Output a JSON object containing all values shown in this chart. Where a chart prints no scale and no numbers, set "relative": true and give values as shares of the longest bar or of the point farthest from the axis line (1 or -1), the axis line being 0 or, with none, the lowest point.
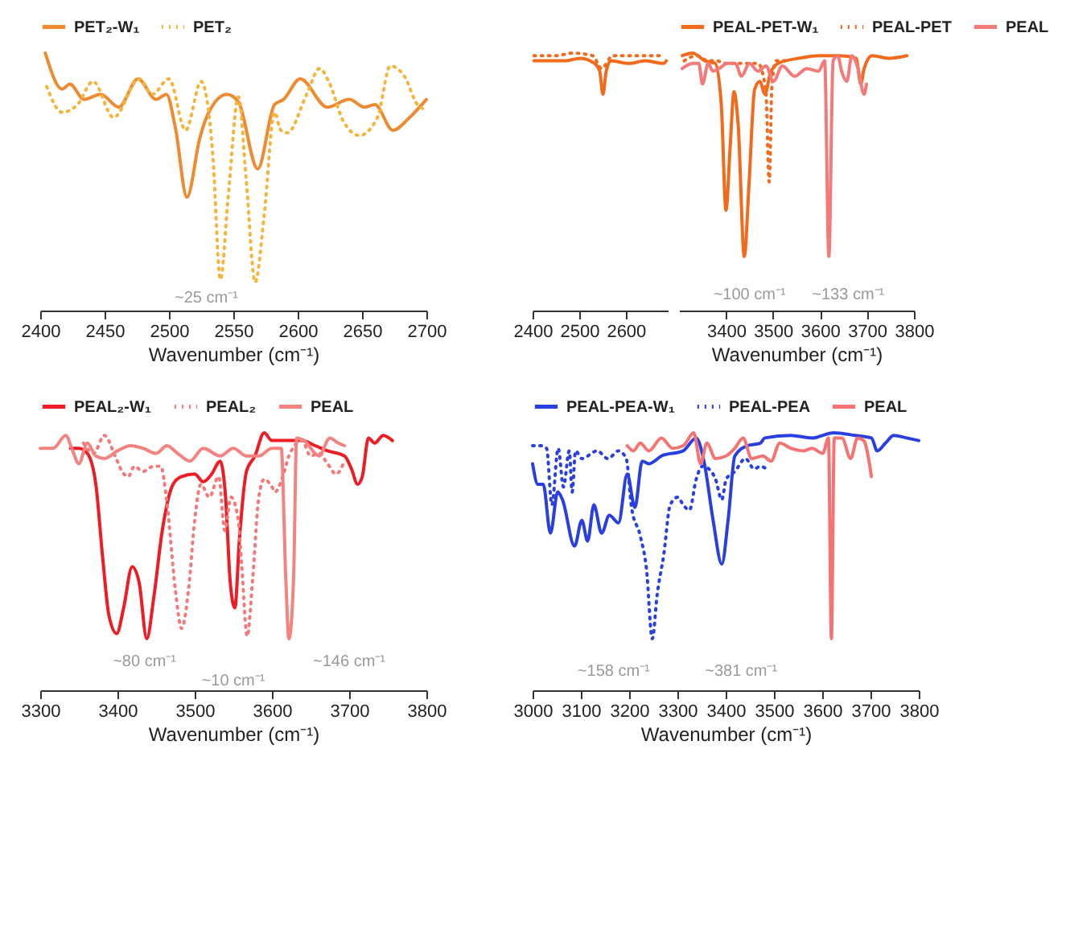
{
  "chart_data": [
    {
      "type": "line",
      "relative": true,
      "xlabel": "Wavenumber (cm⁻¹)",
      "xlim": [
        2400,
        2700
      ],
      "xticks": [
        2400,
        2450,
        2500,
        2550,
        2600,
        2650,
        2700
      ],
      "legend": "top",
      "annotations": [
        "~25 cm⁻¹"
      ],
      "series": [
        {
          "name": "PET₂-W₁",
          "color": "#f08a30",
          "line_style": "solid",
          "x": [
            2404,
            2417,
            2423,
            2434,
            2447,
            2461,
            2476,
            2490,
            2498,
            2505,
            2514,
            2524,
            2530,
            2545,
            2554,
            2569,
            2582,
            2589,
            2602,
            2623,
            2640,
            2652,
            2660,
            2674,
            2687,
            2700
          ],
          "values": [
            1.0,
            0.86,
            0.88,
            0.82,
            0.84,
            0.79,
            0.9,
            0.82,
            0.84,
            0.71,
            0.44,
            0.67,
            0.76,
            0.84,
            0.81,
            0.55,
            0.8,
            0.82,
            0.9,
            0.79,
            0.82,
            0.79,
            0.8,
            0.7,
            0.75,
            0.82
          ]
        },
        {
          "name": "PET₂",
          "color": "#f5b43c",
          "line_style": "dotted",
          "x": [
            2405,
            2417,
            2429,
            2441,
            2457,
            2477,
            2487,
            2500,
            2513,
            2525,
            2534,
            2540,
            2546,
            2554,
            2560,
            2567,
            2574,
            2582,
            2587,
            2592,
            2607,
            2617,
            2625,
            2635,
            2648,
            2662,
            2672,
            2683,
            2693,
            2700
          ],
          "values": [
            0.87,
            0.77,
            0.8,
            0.89,
            0.75,
            0.9,
            0.84,
            0.9,
            0.7,
            0.89,
            0.61,
            0.12,
            0.44,
            0.83,
            0.51,
            0.11,
            0.37,
            0.77,
            0.7,
            0.69,
            0.84,
            0.94,
            0.88,
            0.74,
            0.68,
            0.75,
            0.95,
            0.91,
            0.8,
            0.78
          ]
        }
      ]
    },
    {
      "type": "line",
      "relative": true,
      "xlim": [
        2400,
        2690
      ],
      "xticks": [
        2400,
        2500,
        2600
      ],
      "series": [
        {
          "color": "#f26b1d",
          "line_style": "solid",
          "x": [
            2403,
            2433,
            2468,
            2503,
            2533,
            2544,
            2551,
            2558,
            2568,
            2607,
            2642,
            2681,
            2687
          ],
          "values": [
            0.97,
            0.97,
            0.97,
            0.98,
            0.96,
            0.93,
            0.84,
            0.93,
            0.97,
            0.96,
            0.97,
            0.96,
            0.97
          ]
        },
        {
          "color": "#f26b1d",
          "line_style": "dotted",
          "x": [
            2403,
            2450,
            2485,
            2529,
            2548,
            2572,
            2624,
            2677
          ],
          "values": [
            0.99,
            0.99,
            1.0,
            0.99,
            0.94,
            0.99,
            0.99,
            0.99
          ]
        }
      ]
    },
    {
      "type": "line",
      "relative": true,
      "xlabel": "Wavenumber (cm⁻¹)",
      "xlim": [
        3300,
        3800
      ],
      "xticks": [
        3400,
        3500,
        3600,
        3700,
        3800
      ],
      "legend": "top",
      "annotations": [
        "~100 cm⁻¹",
        "~133 cm⁻¹"
      ],
      "series": [
        {
          "name": "PEAL-PET-W₁",
          "color": "#f26b1d",
          "line_style": "solid",
          "x": [
            3307,
            3329,
            3355,
            3377,
            3390,
            3400,
            3409,
            3417,
            3426,
            3439,
            3449,
            3461,
            3472,
            3483,
            3494,
            3511,
            3555,
            3598,
            3642,
            3677,
            3687,
            3694,
            3711,
            3746,
            3785
          ],
          "values": [
            0.99,
            1.0,
            0.97,
            0.96,
            0.8,
            0.39,
            0.64,
            0.85,
            0.72,
            0.21,
            0.49,
            0.86,
            0.89,
            0.84,
            0.92,
            0.96,
            0.98,
            0.99,
            0.99,
            0.98,
            0.88,
            0.94,
            0.99,
            0.98,
            0.99
          ]
        },
        {
          "name": "PEAL-PET",
          "color": "#f26b1d",
          "line_style": "dotted",
          "x": [
            3311,
            3337,
            3363,
            3381,
            3398,
            3433,
            3468,
            3485,
            3492,
            3498,
            3507,
            3537
          ],
          "values": [
            0.97,
            0.99,
            0.97,
            0.97,
            0.96,
            0.96,
            0.96,
            0.85,
            0.5,
            0.88,
            0.97,
            0.97
          ]
        },
        {
          "name": "PEAL",
          "color": "#f47a7a",
          "line_style": "solid",
          "x": [
            3307,
            3329,
            3342,
            3350,
            3362,
            3372,
            3385,
            3403,
            3420,
            3433,
            3450,
            3468,
            3485,
            3501,
            3520,
            3546,
            3572,
            3597,
            3610,
            3619,
            3628,
            3638,
            3646,
            3657,
            3668,
            3681,
            3694,
            3699
          ],
          "values": [
            0.94,
            0.96,
            0.96,
            0.88,
            0.96,
            0.93,
            0.94,
            0.96,
            0.96,
            0.91,
            0.96,
            0.93,
            0.95,
            0.89,
            0.95,
            0.91,
            0.94,
            0.93,
            0.97,
            0.21,
            0.97,
            0.99,
            0.93,
            0.89,
            0.99,
            0.94,
            0.84,
            0.88
          ]
        }
      ]
    },
    {
      "type": "line",
      "relative": true,
      "xlabel": "Wavenumber (cm⁻¹)",
      "xlim": [
        3300,
        3800
      ],
      "xticks": [
        3300,
        3400,
        3500,
        3600,
        3700,
        3800
      ],
      "legend": "top",
      "annotations": [
        "~80 cm⁻¹",
        "~10 cm⁻¹",
        "~146 cm⁻¹"
      ],
      "series": [
        {
          "name": "PEAL₂-W₁",
          "color": "#ee1c25",
          "line_style": "solid",
          "x": [
            3339,
            3350,
            3361,
            3372,
            3381,
            3389,
            3399,
            3408,
            3419,
            3428,
            3438,
            3447,
            3458,
            3472,
            3483,
            3500,
            3511,
            3522,
            3533,
            3540,
            3546,
            3552,
            3558,
            3567,
            3578,
            3590,
            3600,
            3617,
            3639,
            3656,
            3672,
            3694,
            3703,
            3711,
            3717,
            3725,
            3733,
            3744,
            3756
          ],
          "values": [
            0.94,
            0.94,
            0.92,
            0.8,
            0.51,
            0.29,
            0.22,
            0.32,
            0.48,
            0.42,
            0.2,
            0.36,
            0.62,
            0.8,
            0.83,
            0.84,
            0.81,
            0.84,
            0.89,
            0.75,
            0.42,
            0.32,
            0.59,
            0.85,
            0.91,
            1.0,
            0.97,
            0.97,
            0.97,
            0.95,
            0.93,
            0.91,
            0.86,
            0.8,
            0.83,
            0.98,
            0.96,
            0.99,
            0.97
          ]
        },
        {
          "name": "PEAL₂",
          "color": "#f37a7a",
          "line_style": "dotted",
          "x": [
            3356,
            3369,
            3383,
            3397,
            3406,
            3414,
            3422,
            3433,
            3447,
            3456,
            3464,
            3475,
            3483,
            3492,
            3500,
            3508,
            3519,
            3531,
            3539,
            3547,
            3556,
            3561,
            3568,
            3575,
            3583,
            3590,
            3600,
            3604,
            3614,
            3622,
            3639,
            3650,
            3661,
            3672,
            3683,
            3694
          ],
          "values": [
            0.96,
            0.92,
            0.99,
            0.91,
            0.85,
            0.83,
            0.87,
            0.85,
            0.87,
            0.87,
            0.73,
            0.39,
            0.24,
            0.39,
            0.66,
            0.8,
            0.75,
            0.83,
            0.62,
            0.75,
            0.67,
            0.48,
            0.21,
            0.43,
            0.75,
            0.82,
            0.79,
            0.77,
            0.83,
            0.91,
            0.97,
            0.91,
            0.92,
            0.88,
            0.84,
            0.89
          ]
        },
        {
          "name": "PEAL",
          "color": "#f4827f",
          "line_style": "solid",
          "x": [
            3300,
            3317,
            3333,
            3342,
            3350,
            3361,
            3372,
            3383,
            3400,
            3417,
            3433,
            3450,
            3464,
            3478,
            3494,
            3511,
            3533,
            3550,
            3567,
            3583,
            3600,
            3612,
            3618,
            3622,
            3628,
            3632,
            3642,
            3656,
            3661,
            3675,
            3686,
            3694
          ],
          "values": [
            0.94,
            0.94,
            0.99,
            0.93,
            0.88,
            0.96,
            0.91,
            0.9,
            0.93,
            0.95,
            0.94,
            0.92,
            0.95,
            0.92,
            0.89,
            0.94,
            0.91,
            0.94,
            0.91,
            0.91,
            0.94,
            0.94,
            0.43,
            0.2,
            0.43,
            0.98,
            0.97,
            0.92,
            0.91,
            0.98,
            0.96,
            0.95
          ]
        }
      ]
    },
    {
      "type": "line",
      "relative": true,
      "xlabel": "Wavenumber (cm⁻¹)",
      "xlim": [
        3000,
        3800
      ],
      "xticks": [
        3000,
        3100,
        3200,
        3300,
        3400,
        3500,
        3600,
        3700,
        3800
      ],
      "legend": "top",
      "annotations": [
        "~158 cm⁻¹",
        "~381 cm⁻¹"
      ],
      "series": [
        {
          "name": "PEAL-PEA-W₁",
          "color": "#2a3fe0",
          "line_style": "solid",
          "x": [
            3000,
            3011,
            3022,
            3037,
            3052,
            3062,
            3087,
            3102,
            3114,
            3127,
            3143,
            3159,
            3178,
            3196,
            3212,
            3227,
            3241,
            3267,
            3312,
            3339,
            3356,
            3374,
            3392,
            3405,
            3419,
            3445,
            3472,
            3481,
            3535,
            3579,
            3624,
            3668,
            3702,
            3714,
            3731,
            3748,
            3775,
            3800
          ],
          "values": [
            0.88,
            0.8,
            0.8,
            0.61,
            0.77,
            0.74,
            0.56,
            0.66,
            0.58,
            0.72,
            0.61,
            0.68,
            0.65,
            0.84,
            0.71,
            0.89,
            0.88,
            0.91,
            0.93,
            0.98,
            0.88,
            0.66,
            0.49,
            0.66,
            0.91,
            0.95,
            0.96,
            0.98,
            0.99,
            0.98,
            1.0,
            0.99,
            0.98,
            0.93,
            0.96,
            0.99,
            0.98,
            0.97
          ]
        },
        {
          "name": "PEAL-PEA",
          "color": "#2a3fe0",
          "line_style": "dotted",
          "x": [
            3000,
            3016,
            3029,
            3040,
            3053,
            3064,
            3076,
            3082,
            3089,
            3102,
            3134,
            3156,
            3178,
            3194,
            3205,
            3223,
            3236,
            3248,
            3258,
            3272,
            3285,
            3301,
            3312,
            3325,
            3339,
            3352,
            3365,
            3379,
            3392,
            3401,
            3419,
            3441,
            3459,
            3472,
            3490
          ],
          "values": [
            0.95,
            0.95,
            0.94,
            0.72,
            0.94,
            0.79,
            0.93,
            0.77,
            0.93,
            0.9,
            0.93,
            0.9,
            0.93,
            0.9,
            0.71,
            0.6,
            0.47,
            0.2,
            0.37,
            0.53,
            0.72,
            0.75,
            0.72,
            0.7,
            0.82,
            0.87,
            0.86,
            0.82,
            0.74,
            0.82,
            0.85,
            0.9,
            0.86,
            0.87,
            0.85
          ]
        },
        {
          "name": "PEAL",
          "color": "#f47474",
          "line_style": "solid",
          "x": [
            3196,
            3209,
            3223,
            3241,
            3267,
            3290,
            3312,
            3334,
            3348,
            3361,
            3379,
            3401,
            3419,
            3436,
            3454,
            3477,
            3494,
            3512,
            3535,
            3561,
            3579,
            3601,
            3613,
            3619,
            3625,
            3641,
            3659,
            3673,
            3686,
            3702
          ],
          "values": [
            0.95,
            0.93,
            0.96,
            0.93,
            0.98,
            0.94,
            0.95,
            1.0,
            0.88,
            0.96,
            0.9,
            0.91,
            0.94,
            0.98,
            0.9,
            0.91,
            0.89,
            0.96,
            0.94,
            0.93,
            0.94,
            0.92,
            0.98,
            0.2,
            0.98,
            0.98,
            0.9,
            0.98,
            0.97,
            0.83
          ]
        }
      ]
    }
  ]
}
